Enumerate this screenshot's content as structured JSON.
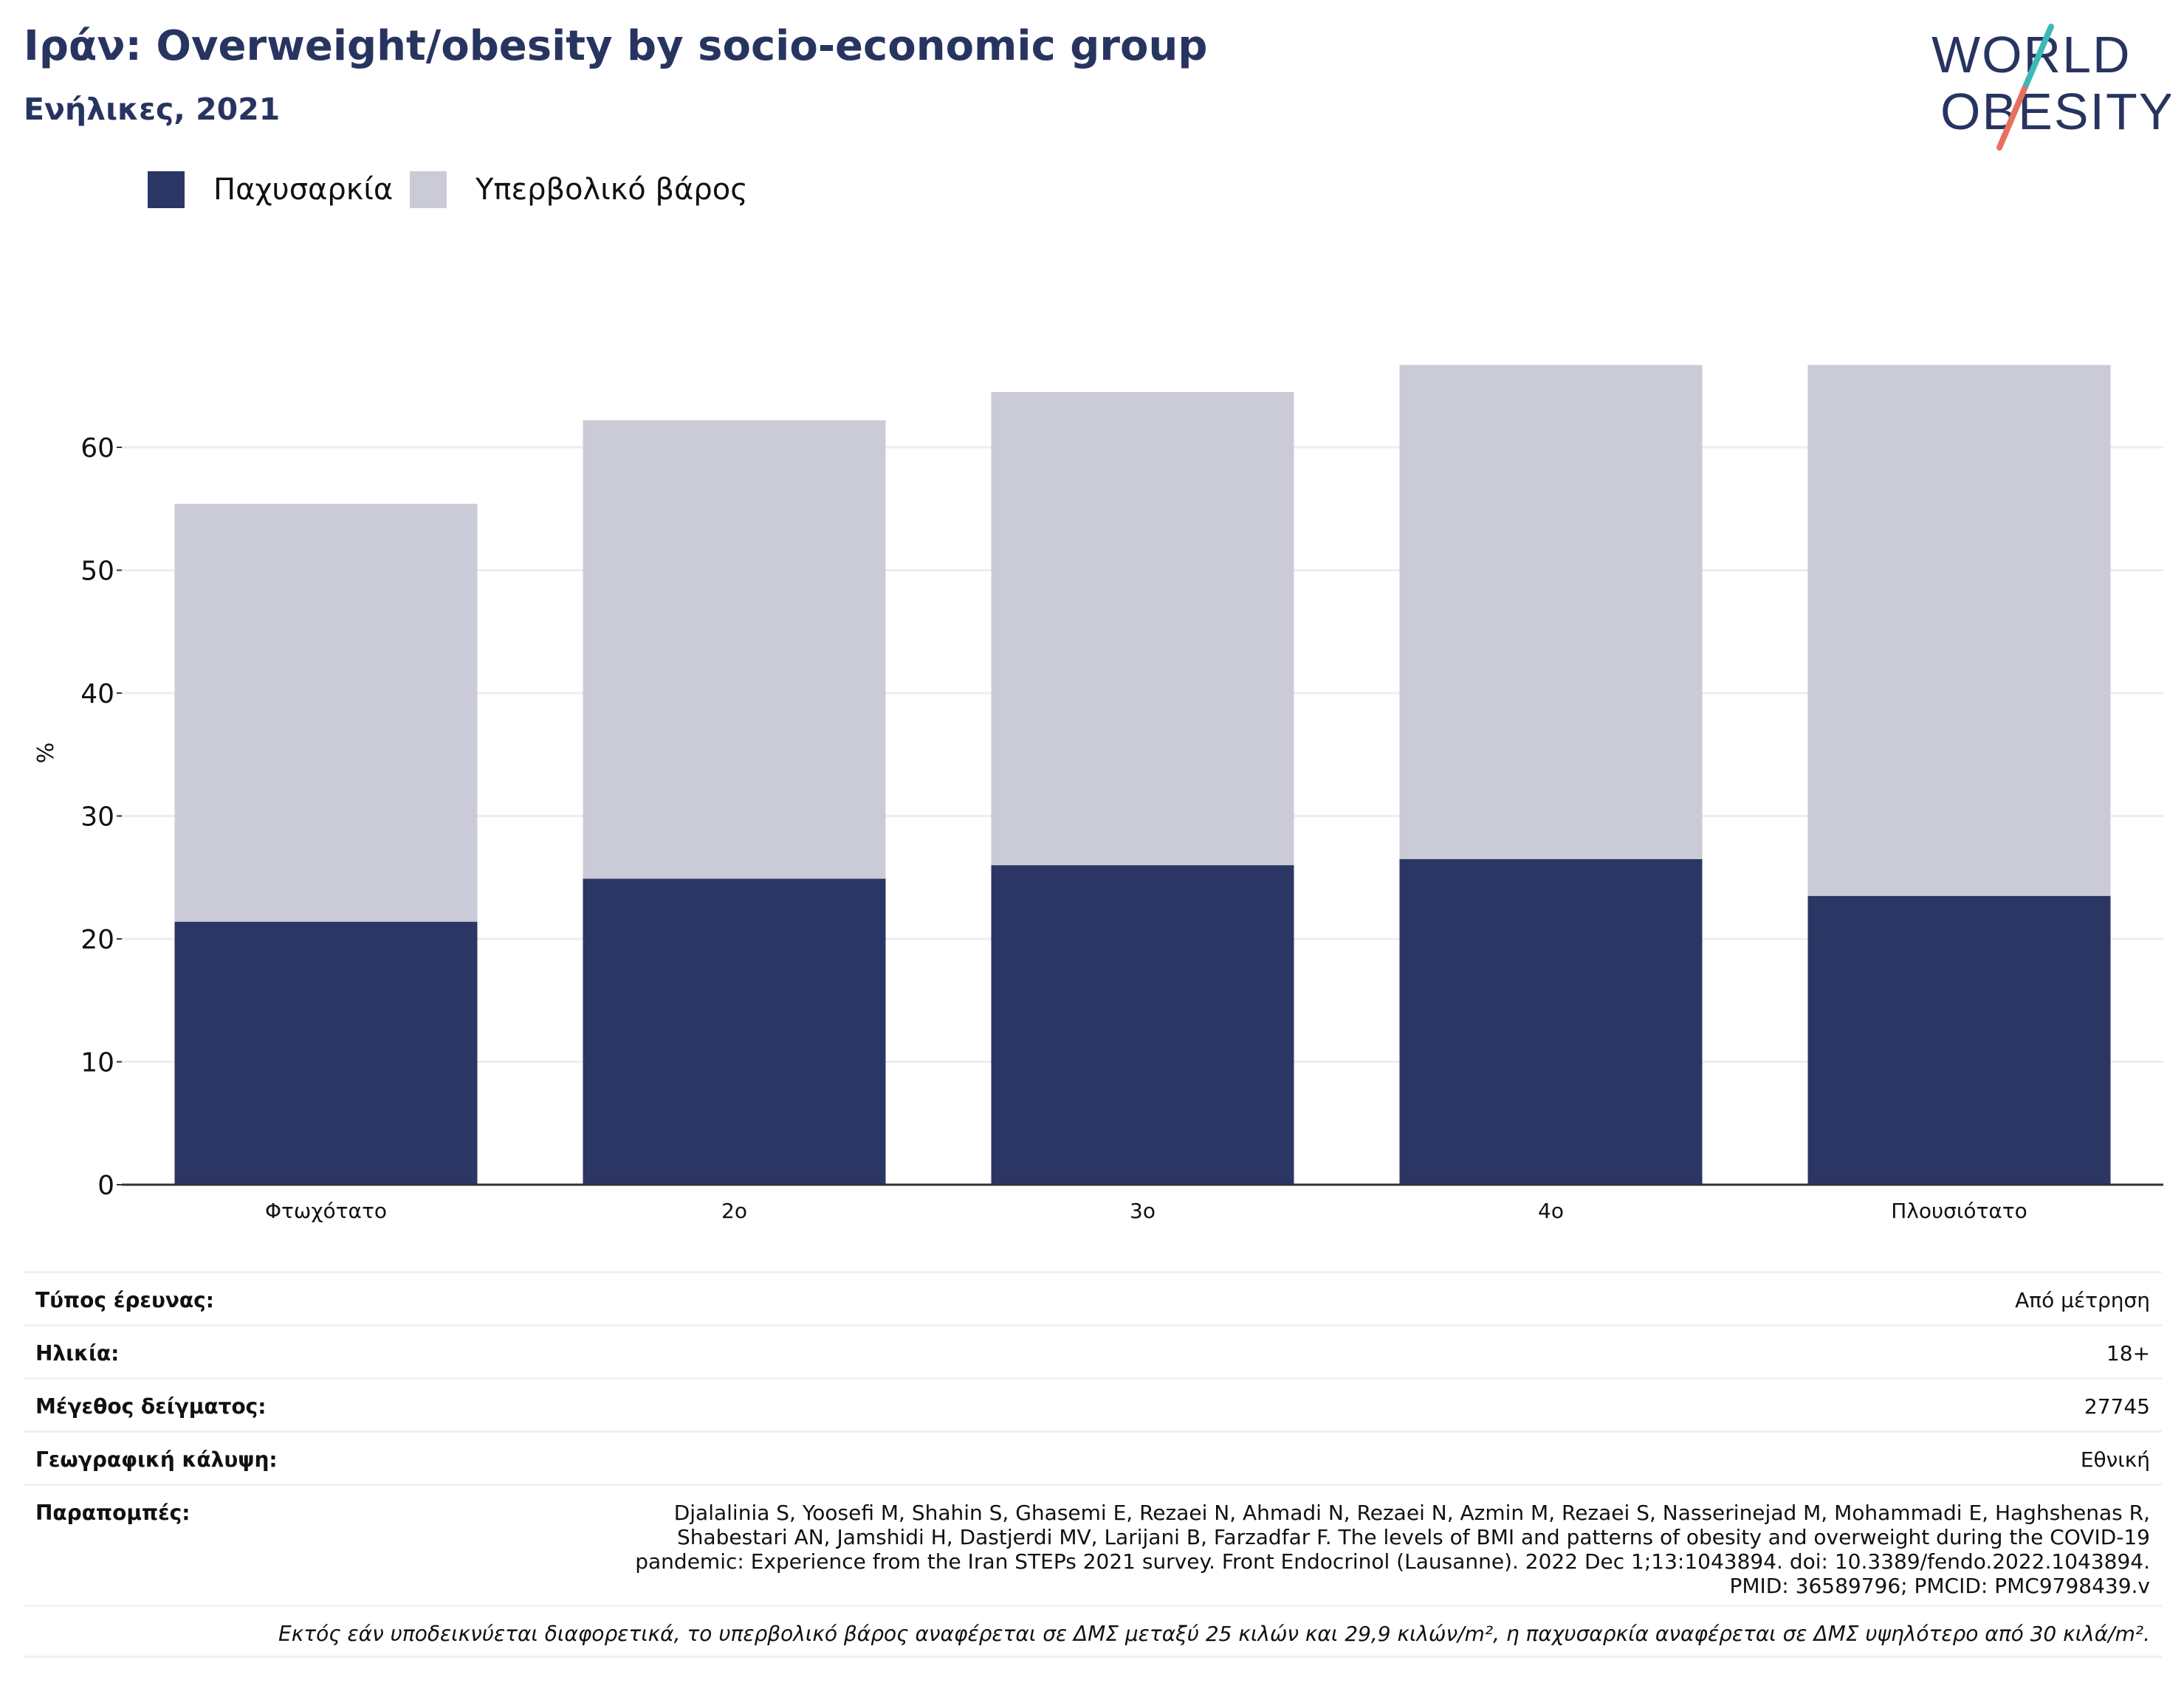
{
  "header": {
    "title": "Ιράν: Overweight/obesity by socio-economic group",
    "subtitle": "Ενήλικες, 2021"
  },
  "logo": {
    "line1": "WORLD",
    "line2": "OBESITY",
    "colors": {
      "text": "#283460",
      "slash_teal": "#3db8b8",
      "slash_coral": "#e8705e"
    }
  },
  "legend": [
    {
      "label": "Παχυσαρκία",
      "color": "#2b3665"
    },
    {
      "label": "Υπερβολικό βάρος",
      "color": "#cacbd7"
    }
  ],
  "chart_data": {
    "type": "bar",
    "stacked": true,
    "categories": [
      "Φτωχότατο",
      "2ο",
      "3ο",
      "4ο",
      "Πλουσιότατο"
    ],
    "series": [
      {
        "name": "Παχυσαρκία",
        "color": "#2b3665",
        "values": [
          21.4,
          24.9,
          26.0,
          26.5,
          23.5
        ]
      },
      {
        "name": "Υπερβολικό βάρος",
        "color": "#cacbd7",
        "values": [
          34.0,
          37.3,
          38.5,
          40.2,
          43.2
        ]
      }
    ],
    "ylabel": "%",
    "ylim": [
      0,
      67
    ],
    "yticks": [
      "0",
      "10",
      "20",
      "30",
      "40",
      "50",
      "60"
    ],
    "grid": true,
    "legend_position": "top-left"
  },
  "info": {
    "survey_type": {
      "label": "Τύπος έρευνας:",
      "value": "Από μέτρηση"
    },
    "age": {
      "label": "Ηλικία:",
      "value": "18+"
    },
    "sample_size": {
      "label": "Μέγεθος δείγματος:",
      "value": "27745"
    },
    "coverage": {
      "label": "Γεωγραφική κάλυψη:",
      "value": "Εθνική"
    },
    "references": {
      "label": "Παραπομπές:",
      "value": "Djalalinia S, Yoosefi M, Shahin S, Ghasemi E, Rezaei N, Ahmadi N, Rezaei N, Azmin M, Rezaei S, Nasserinejad M, Mohammadi E, Haghshenas R, Shabestari AN, Jamshidi H, Dastjerdi MV, Larijani B, Farzadfar F. The levels of BMI and patterns of obesity and overweight during the COVID-19 pandemic: Experience from the Iran STEPs 2021 survey. Front Endocrinol (Lausanne). 2022 Dec 1;13:1043894. doi: 10.3389/fendo.2022.1043894. PMID: 36589796; PMCID: PMC9798439.v"
    },
    "footnote": "Εκτός εάν υποδεικνύεται διαφορετικά, το υπερβολικό βάρος αναφέρεται σε ΔΜΣ μεταξύ 25 κιλών και 29,9 κιλών/m², η παχυσαρκία αναφέρεται σε ΔΜΣ υψηλότερο από 30 κιλά/m²."
  }
}
